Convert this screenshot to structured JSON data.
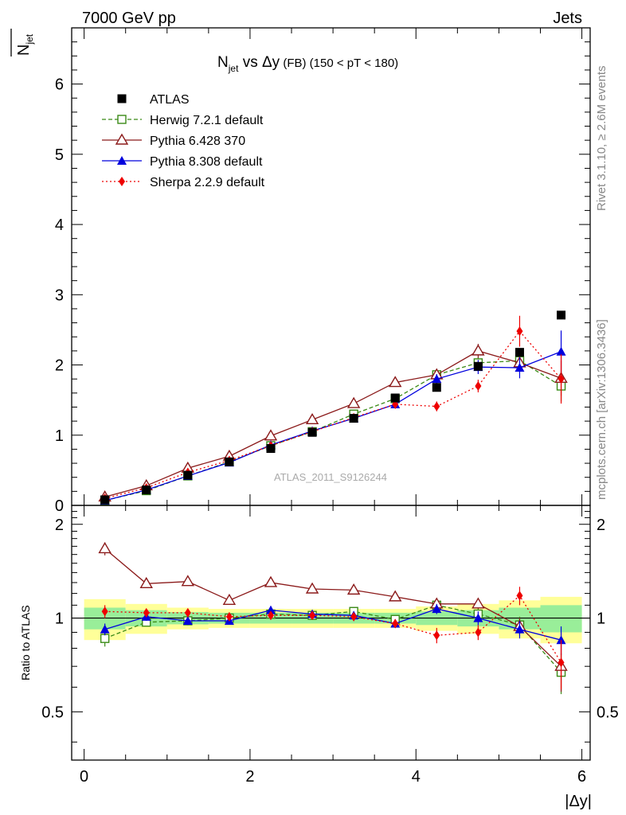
{
  "header": {
    "left": "7000 GeV pp",
    "right": "Jets",
    "title_main": "N",
    "title_sub": "jet",
    "title_vs": " vs ",
    "title_delta": "Δy",
    "title_fb": " (FB)",
    "title_range": " (150 < pT < 180)",
    "ylabel_main": "N",
    "ylabel_sub": "jet",
    "watermark": "ATLAS_2011_S9126244",
    "side_rivet": "Rivet 3.1.10, ≥ 2.6M events",
    "side_mcplots": "mcplots.cern.ch [arXiv:1306.3436]",
    "ratio_ylabel": "Ratio to ATLAS",
    "xlabel": "|Δy|"
  },
  "chart_data": {
    "type": "scatter",
    "x": [
      0.25,
      0.75,
      1.25,
      1.75,
      2.25,
      2.75,
      3.25,
      3.75,
      4.25,
      4.75,
      5.25,
      5.75
    ],
    "xlim": [
      -0.15,
      6.1
    ],
    "ylim": [
      0,
      6.8
    ],
    "ratio_ylim": [
      0.35,
      2.3
    ],
    "x_ticks": [
      0,
      2,
      4,
      6
    ],
    "y_ticks": [
      0,
      1,
      2,
      3,
      4,
      5,
      6
    ],
    "ratio_ticks": [
      0.5,
      1,
      2
    ],
    "grid": false,
    "legend_position": "top-left",
    "data": {
      "name": "ATLAS",
      "color": "#000000",
      "values": [
        0.08,
        0.22,
        0.43,
        0.62,
        0.81,
        1.04,
        1.24,
        1.53,
        1.68,
        1.98,
        2.18,
        2.71
      ],
      "band_yellow": [
        0.15,
        0.11,
        0.08,
        0.07,
        0.07,
        0.07,
        0.07,
        0.07,
        0.09,
        0.11,
        0.14,
        0.17
      ],
      "band_green": [
        0.08,
        0.06,
        0.045,
        0.04,
        0.04,
        0.04,
        0.04,
        0.04,
        0.05,
        0.06,
        0.08,
        0.1
      ]
    },
    "series": [
      {
        "name": "Herwig 7.2.1 default",
        "color": "#3a8a16",
        "marker": "open-square",
        "dash": "5,3",
        "values": [
          0.07,
          0.21,
          0.42,
          0.62,
          0.85,
          1.05,
          1.3,
          1.52,
          1.86,
          2.03,
          2.06,
          1.7
        ],
        "err": [
          0.01,
          0.01,
          0.02,
          0.02,
          0.02,
          0.03,
          0.03,
          0.05,
          0.06,
          0.08,
          0.12,
          0.22
        ],
        "ratio": [
          0.86,
          0.97,
          0.98,
          1.0,
          1.03,
          1.02,
          1.05,
          0.99,
          1.1,
          1.03,
          0.95,
          0.67
        ],
        "ratio_err": [
          0.05,
          0.03,
          0.03,
          0.02,
          0.02,
          0.02,
          0.02,
          0.03,
          0.03,
          0.04,
          0.06,
          0.1
        ]
      },
      {
        "name": "Pythia 6.428 370",
        "color": "#8b1a1a",
        "marker": "open-triangle",
        "dash": "",
        "values": [
          0.12,
          0.28,
          0.53,
          0.7,
          0.99,
          1.22,
          1.45,
          1.75,
          1.86,
          2.2,
          2.03,
          1.81
        ],
        "err": [
          0.01,
          0.01,
          0.02,
          0.02,
          0.03,
          0.03,
          0.04,
          0.05,
          0.06,
          0.1,
          0.13,
          0.25
        ],
        "ratio": [
          1.67,
          1.29,
          1.31,
          1.14,
          1.3,
          1.24,
          1.23,
          1.17,
          1.11,
          1.11,
          0.94,
          0.7
        ],
        "ratio_err": [
          0.08,
          0.03,
          0.03,
          0.02,
          0.02,
          0.02,
          0.02,
          0.03,
          0.03,
          0.04,
          0.06,
          0.12
        ]
      },
      {
        "name": "Pythia 8.308 default",
        "color": "#0000dd",
        "marker": "filled-triangle",
        "dash": "",
        "values": [
          0.07,
          0.22,
          0.42,
          0.61,
          0.86,
          1.06,
          1.24,
          1.44,
          1.8,
          1.97,
          1.96,
          2.19
        ],
        "err": [
          0.01,
          0.01,
          0.02,
          0.02,
          0.02,
          0.03,
          0.03,
          0.04,
          0.07,
          0.1,
          0.15,
          0.3
        ],
        "ratio": [
          0.92,
          1.01,
          0.98,
          0.98,
          1.06,
          1.03,
          1.02,
          0.96,
          1.07,
          1.0,
          0.92,
          0.85
        ],
        "ratio_err": [
          0.04,
          0.03,
          0.03,
          0.02,
          0.02,
          0.02,
          0.02,
          0.03,
          0.04,
          0.05,
          0.06,
          0.09
        ]
      },
      {
        "name": "Sherpa 2.2.9 default",
        "color": "#ee0000",
        "marker": "filled-diamond",
        "dash": "2,3",
        "values": [
          0.1,
          0.25,
          0.47,
          0.64,
          0.85,
          1.05,
          1.25,
          1.44,
          1.41,
          1.7,
          2.48,
          1.8
        ],
        "err": [
          0.01,
          0.01,
          0.02,
          0.02,
          0.02,
          0.03,
          0.03,
          0.04,
          0.07,
          0.09,
          0.22,
          0.35
        ],
        "ratio": [
          1.05,
          1.04,
          1.04,
          1.01,
          1.02,
          1.02,
          1.01,
          0.96,
          0.88,
          0.9,
          1.18,
          0.72
        ],
        "ratio_err": [
          0.05,
          0.03,
          0.03,
          0.02,
          0.02,
          0.02,
          0.02,
          0.03,
          0.05,
          0.05,
          0.08,
          0.13
        ]
      }
    ]
  }
}
